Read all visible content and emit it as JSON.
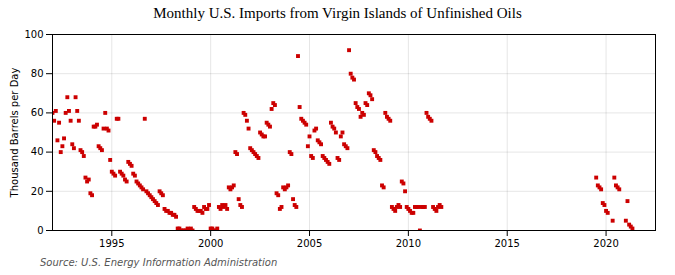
{
  "chart_data": {
    "type": "scatter",
    "title": "Monthly U.S. Imports from Virgin Islands of Unfinished Oils",
    "ylabel": "Thousand Barrels per Day",
    "source": "Source: U.S. Energy Information Administration",
    "color": "#cc0000",
    "marker": "square",
    "grid": true,
    "xlim": [
      1992.0,
      2022.5
    ],
    "ylim": [
      0,
      100
    ],
    "xticks": [
      1995,
      2000,
      2005,
      2010,
      2015,
      2020
    ],
    "yticks": [
      0,
      20,
      40,
      60,
      80,
      100
    ],
    "x": [
      1992.0,
      1992.083,
      1992.167,
      1992.25,
      1992.333,
      1992.417,
      1992.5,
      1992.583,
      1992.667,
      1992.75,
      1992.833,
      1992.917,
      1993.0,
      1993.083,
      1993.167,
      1993.25,
      1993.333,
      1993.417,
      1993.5,
      1993.583,
      1993.667,
      1993.75,
      1993.833,
      1993.917,
      1994.0,
      1994.083,
      1994.167,
      1994.25,
      1994.333,
      1994.417,
      1994.5,
      1994.583,
      1994.667,
      1994.75,
      1994.833,
      1994.917,
      1995.0,
      1995.083,
      1995.167,
      1995.25,
      1995.333,
      1995.417,
      1995.5,
      1995.583,
      1995.667,
      1995.75,
      1995.833,
      1995.917,
      1996.0,
      1996.083,
      1996.167,
      1996.25,
      1996.333,
      1996.417,
      1996.5,
      1996.583,
      1996.667,
      1996.75,
      1996.833,
      1996.917,
      1997.0,
      1997.083,
      1997.167,
      1997.25,
      1997.333,
      1997.417,
      1997.5,
      1997.583,
      1997.667,
      1997.75,
      1997.833,
      1997.917,
      1998.0,
      1998.083,
      1998.167,
      1998.25,
      1998.333,
      1998.417,
      1998.5,
      1998.583,
      1998.667,
      1998.75,
      1998.833,
      1998.917,
      1999.0,
      1999.083,
      1999.167,
      1999.25,
      1999.333,
      1999.417,
      1999.5,
      1999.583,
      1999.667,
      1999.75,
      1999.833,
      1999.917,
      2000.0,
      2000.083,
      2000.167,
      2000.25,
      2000.333,
      2000.417,
      2000.5,
      2000.583,
      2000.667,
      2000.75,
      2000.833,
      2000.917,
      2001.0,
      2001.083,
      2001.167,
      2001.25,
      2001.333,
      2001.417,
      2001.5,
      2001.583,
      2001.667,
      2001.75,
      2001.833,
      2001.917,
      2002.0,
      2002.083,
      2002.167,
      2002.25,
      2002.333,
      2002.417,
      2002.5,
      2002.583,
      2002.667,
      2002.75,
      2002.833,
      2002.917,
      2003.0,
      2003.083,
      2003.167,
      2003.25,
      2003.333,
      2003.417,
      2003.5,
      2003.583,
      2003.667,
      2003.75,
      2003.833,
      2003.917,
      2004.0,
      2004.083,
      2004.167,
      2004.25,
      2004.333,
      2004.417,
      2004.5,
      2004.583,
      2004.667,
      2004.75,
      2004.833,
      2004.917,
      2005.0,
      2005.083,
      2005.167,
      2005.25,
      2005.333,
      2005.417,
      2005.5,
      2005.583,
      2005.667,
      2005.75,
      2005.833,
      2005.917,
      2006.0,
      2006.083,
      2006.167,
      2006.25,
      2006.333,
      2006.417,
      2006.5,
      2006.583,
      2006.667,
      2006.75,
      2006.833,
      2006.917,
      2007.0,
      2007.083,
      2007.167,
      2007.25,
      2007.333,
      2007.417,
      2007.5,
      2007.583,
      2007.667,
      2007.75,
      2007.833,
      2007.917,
      2008.0,
      2008.083,
      2008.167,
      2008.25,
      2008.333,
      2008.417,
      2008.5,
      2008.583,
      2008.667,
      2008.75,
      2008.833,
      2008.917,
      2009.0,
      2009.083,
      2009.167,
      2009.25,
      2009.333,
      2009.417,
      2009.5,
      2009.583,
      2009.667,
      2009.75,
      2009.833,
      2009.917,
      2010.0,
      2010.083,
      2010.167,
      2010.25,
      2010.333,
      2010.417,
      2010.5,
      2010.583,
      2010.667,
      2010.75,
      2010.833,
      2010.917,
      2011.0,
      2011.083,
      2011.167,
      2011.25,
      2011.333,
      2011.417,
      2011.5,
      2011.583,
      2011.667,
      2019.5,
      2019.583,
      2019.667,
      2019.75,
      2019.833,
      2019.917,
      2020.0,
      2020.083,
      2020.333,
      2020.417,
      2020.5,
      2020.583,
      2020.667,
      2021.0,
      2021.083,
      2021.167,
      2021.25,
      2021.333
    ],
    "values": [
      60,
      56,
      61,
      46,
      55,
      40,
      43,
      47,
      60,
      68,
      61,
      56,
      44,
      42,
      68,
      61,
      56,
      41,
      40,
      38,
      27,
      25,
      26,
      19,
      18,
      53,
      53,
      54,
      43,
      42,
      41,
      52,
      60,
      52,
      51,
      36,
      30,
      29,
      28,
      57,
      57,
      30,
      29,
      28,
      26,
      25,
      35,
      34,
      33,
      29,
      28,
      25,
      24,
      23,
      22,
      21,
      57,
      20,
      19,
      18,
      17,
      16,
      15,
      14,
      13,
      20,
      19,
      18,
      11,
      10,
      10,
      9,
      9,
      8,
      8,
      7,
      1,
      1,
      0,
      0,
      0,
      0,
      1,
      0,
      1,
      0,
      12,
      11,
      10,
      10,
      10,
      9,
      12,
      11,
      11,
      13,
      1,
      1,
      0,
      0,
      1,
      12,
      11,
      13,
      12,
      13,
      11,
      22,
      21,
      22,
      23,
      40,
      39,
      16,
      13,
      12,
      60,
      59,
      56,
      52,
      42,
      41,
      40,
      39,
      38,
      37,
      50,
      49,
      48,
      48,
      55,
      54,
      53,
      62,
      65,
      64,
      19,
      18,
      11,
      12,
      22,
      21,
      22,
      23,
      40,
      39,
      16,
      13,
      12,
      89,
      63,
      57,
      56,
      55,
      54,
      43,
      48,
      38,
      37,
      51,
      52,
      46,
      45,
      44,
      38,
      37,
      36,
      35,
      34,
      55,
      53,
      52,
      50,
      37,
      36,
      48,
      50,
      44,
      43,
      42,
      92,
      80,
      78,
      77,
      65,
      63,
      62,
      58,
      60,
      59,
      65,
      64,
      70,
      69,
      67,
      41,
      40,
      38,
      37,
      36,
      23,
      22,
      60,
      58,
      57,
      56,
      12,
      11,
      10,
      12,
      13,
      12,
      25,
      24,
      20,
      12,
      11,
      10,
      9,
      9,
      12,
      12,
      12,
      0,
      12,
      12,
      12,
      60,
      58,
      57,
      56,
      12,
      11,
      10,
      12,
      13,
      12,
      27,
      23,
      22,
      21,
      14,
      13,
      10,
      9,
      5,
      27,
      23,
      22,
      21,
      5,
      15,
      3,
      2,
      1
    ]
  }
}
